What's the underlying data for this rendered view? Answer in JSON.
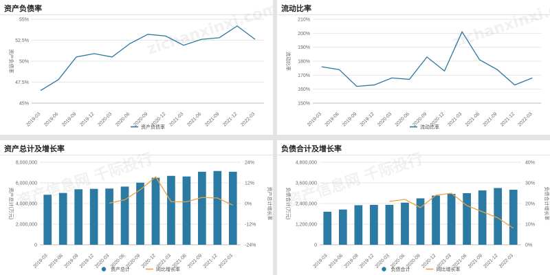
{
  "watermark": {
    "text": "资产信息网 千际投行",
    "domain": "zichanxinxi.com"
  },
  "chart_data": [
    {
      "id": "debt-ratio",
      "type": "line",
      "title": "资产负债率",
      "categories": [
        "2019-03",
        "2019-06",
        "2019-09",
        "2019-12",
        "2020-03",
        "2020-06",
        "2020-09",
        "2020-12",
        "2021-03",
        "2021-06",
        "2021-09",
        "2021-12",
        "2022-03"
      ],
      "series": [
        {
          "name": "资产负债率",
          "color": "#2878a0",
          "values": [
            46.5,
            47.8,
            50.5,
            50.9,
            50.5,
            52.1,
            53.2,
            53.0,
            51.9,
            52.6,
            52.8,
            54.2,
            52.6
          ]
        }
      ],
      "ylabel": "资产负债率",
      "ylim": [
        45,
        55
      ],
      "yticks": [
        45,
        47.5,
        50,
        52.5,
        55
      ],
      "ytick_labels": [
        "45%",
        "47.5%",
        "50%",
        "52.5%",
        "55%"
      ],
      "legend": "bottom-center"
    },
    {
      "id": "current-ratio",
      "type": "line",
      "title": "流动比率",
      "categories": [
        "2019-03",
        "2019-06",
        "2019-09",
        "2019-12",
        "2020-03",
        "2020-06",
        "2020-09",
        "2020-12",
        "2021-03",
        "2021-06",
        "2021-09",
        "2021-12",
        "2022-03"
      ],
      "series": [
        {
          "name": "流动比率",
          "color": "#2878a0",
          "values": [
            176,
            174,
            162,
            163,
            168,
            167,
            183,
            173,
            201,
            181,
            174,
            163,
            168
          ]
        }
      ],
      "ylabel": "流动比率",
      "ylim": [
        150,
        210
      ],
      "yticks": [
        150,
        160,
        170,
        180,
        190,
        200,
        210
      ],
      "ytick_labels": [
        "150%",
        "160%",
        "170%",
        "180%",
        "190%",
        "200%",
        "210%"
      ],
      "legend": "bottom-center"
    },
    {
      "id": "total-assets",
      "type": "bar",
      "title": "资产总计及增长率",
      "categories": [
        "2019-03",
        "2019-06",
        "2019-09",
        "2019-12",
        "2020-03",
        "2020-06",
        "2020-09",
        "2020-12",
        "2021-03",
        "2021-06",
        "2021-09",
        "2021-12",
        "2022-03"
      ],
      "series": [
        {
          "name": "资产总计",
          "kind": "bar",
          "axis": "left",
          "color": "#2a7aa3",
          "values": [
            4850000,
            5020000,
            5380000,
            5420000,
            5450000,
            5640000,
            6020000,
            6500000,
            6680000,
            6620000,
            7080000,
            7150000,
            7080000
          ]
        },
        {
          "name": "同比增长率",
          "kind": "line",
          "axis": "right",
          "color": "#f0a040",
          "values": [
            null,
            null,
            null,
            null,
            0.2,
            2.2,
            8.0,
            15.5,
            1.0,
            1.0,
            3.5,
            3.2,
            -1.0
          ]
        }
      ],
      "ylabel": "资产总计(万元)",
      "y2label": "资产总计增长率",
      "ylim": [
        0,
        8000000
      ],
      "yticks": [
        0,
        2000000,
        4000000,
        6000000,
        8000000
      ],
      "ytick_labels": [
        "0",
        "2,000,000",
        "4,000,000",
        "6,000,000",
        "8,000,000"
      ],
      "y2lim": [
        -24,
        24
      ],
      "y2ticks": [
        -24,
        -12,
        0,
        12,
        24
      ],
      "y2tick_labels": [
        "-24%",
        "-12%",
        "0%",
        "12%",
        "24%"
      ],
      "legend": "bottom-center"
    },
    {
      "id": "total-liabilities",
      "type": "bar",
      "title": "负债合计及增长率",
      "categories": [
        "2019-03",
        "2019-06",
        "2019-09",
        "2019-12",
        "2020-03",
        "2020-06",
        "2020-09",
        "2020-12",
        "2021-03",
        "2021-06",
        "2021-09",
        "2021-12",
        "2022-03"
      ],
      "series": [
        {
          "name": "负债合计",
          "kind": "bar",
          "axis": "left",
          "color": "#2a7aa3",
          "values": [
            1920000,
            2050000,
            2300000,
            2320000,
            2320000,
            2450000,
            2700000,
            2860000,
            2960000,
            3000000,
            3160000,
            3300000,
            3200000
          ]
        },
        {
          "name": "同比增长率",
          "kind": "line",
          "axis": "right",
          "color": "#f0a040",
          "values": [
            null,
            null,
            null,
            null,
            21.0,
            22.0,
            18.0,
            24.0,
            25.0,
            19.0,
            16.0,
            13.0,
            8.0
          ]
        }
      ],
      "ylabel": "负债合计(万元)",
      "y2label": "负债合计增长率",
      "ylim": [
        0,
        4800000
      ],
      "yticks": [
        0,
        1200000,
        2400000,
        3600000,
        4800000
      ],
      "ytick_labels": [
        "0",
        "1,200,000",
        "2,400,000",
        "3,600,000",
        "4,800,000"
      ],
      "y2lim": [
        0,
        40
      ],
      "y2ticks": [
        0,
        10,
        20,
        30,
        40
      ],
      "y2tick_labels": [
        "0%",
        "10%",
        "20%",
        "30%",
        "40%"
      ],
      "legend": "bottom-center"
    }
  ]
}
